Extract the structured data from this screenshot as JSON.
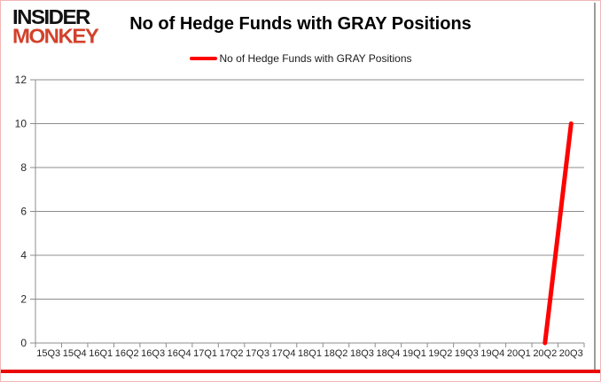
{
  "branding": {
    "logo_line1": "INSIDER",
    "logo_line2": "MONKEY",
    "logo_color": "#d2412b"
  },
  "header": {
    "title": "No of Hedge Funds with GRAY Positions"
  },
  "legend": {
    "label": "No of Hedge Funds with GRAY Positions",
    "swatch_color": "#fe0101"
  },
  "chart_data": {
    "type": "line",
    "title": "No of Hedge Funds with GRAY Positions",
    "categories": [
      "15Q3",
      "15Q4",
      "16Q1",
      "16Q2",
      "16Q3",
      "16Q4",
      "17Q1",
      "17Q2",
      "17Q3",
      "17Q4",
      "18Q1",
      "18Q2",
      "18Q3",
      "18Q4",
      "19Q1",
      "19Q2",
      "19Q3",
      "19Q4",
      "20Q1",
      "20Q2",
      "20Q3"
    ],
    "series": [
      {
        "name": "No of Hedge Funds with GRAY Positions",
        "color": "#fe0101",
        "values": [
          null,
          null,
          null,
          null,
          null,
          null,
          null,
          null,
          null,
          null,
          null,
          null,
          null,
          null,
          null,
          null,
          null,
          null,
          null,
          0,
          10
        ]
      }
    ],
    "xlabel": "",
    "ylabel": "",
    "ylim": [
      0,
      12
    ],
    "yticks": [
      0,
      2,
      4,
      6,
      8,
      10,
      12
    ],
    "grid": "horizontal",
    "legend_position": "top-center"
  },
  "decor": {
    "frame_color": "#f2b6b6",
    "bottom_bar_color": "#ea0808",
    "right_edge_color": "#9c9c9c",
    "grid_color": "#8c8c8c",
    "axis_color": "#8c8c8c",
    "tick_label_color": "#262626"
  }
}
